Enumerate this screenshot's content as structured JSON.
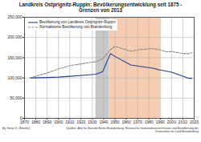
{
  "chart_data": {
    "type": "line",
    "title": "Landkreis Ostprignitz-Ruppin: Bevölkerungsentwicklung seit 1875 -",
    "subtitle": "Grenzen von 2013",
    "x": [
      1875,
      1890,
      1900,
      1910,
      1925,
      1933,
      1939,
      1946,
      1950,
      1964,
      1971,
      1981,
      1985,
      1989,
      1995,
      2000,
      2005,
      2010,
      2015,
      2018
    ],
    "series": [
      {
        "name": "Bevölkerung von Landkreis Ostprignitz-Ruppin",
        "color": "#1f3f9a",
        "line_style": "solid",
        "values": [
          100000,
          101000,
          102000,
          104000,
          107000,
          109000,
          115000,
          160000,
          153000,
          132000,
          129000,
          125000,
          123000,
          120000,
          117000,
          114000,
          109000,
          104000,
          99000,
          99000
        ]
      },
      {
        "name": "Normalisierte Bevölkerung von Brandenburg",
        "color": "#8c8c8c",
        "line_style": "dashed",
        "values": [
          100000,
          112000,
          122000,
          130000,
          137000,
          140000,
          147000,
          170000,
          178000,
          166000,
          170000,
          172000,
          172000,
          170000,
          165000,
          165000,
          163000,
          160000,
          160000,
          162000
        ]
      }
    ],
    "periods": [
      {
        "from": 1933,
        "to": 1945,
        "color": "#c8c8c8"
      },
      {
        "from": 1945,
        "to": 1990,
        "color": "#f6cdb0"
      }
    ],
    "xlim": [
      1870,
      2020
    ],
    "xticks": [
      1870,
      1880,
      1890,
      1900,
      1910,
      1920,
      1930,
      1940,
      1950,
      1960,
      1970,
      1980,
      1990,
      2000,
      2010,
      2020
    ],
    "ylim": [
      0,
      250000
    ],
    "yticks": [
      0,
      {
        "value": 50000,
        "label": "50,000"
      },
      {
        "value": 100000,
        "label": "100,000"
      },
      {
        "value": 150000,
        "label": "150,000"
      },
      {
        "value": 200000,
        "label": "200,000"
      },
      {
        "value": 250000,
        "label": "250,000"
      }
    ],
    "grid": true,
    "legend": "top-left",
    "author": "By Tonne K. (Ebertin)",
    "source": "Quellen: Amt für Statistik Berlin-Brandenburg; Historische Gemeindeverzeichnisse und Bevölkerung der Gemeinden im Land Brandenburg"
  }
}
